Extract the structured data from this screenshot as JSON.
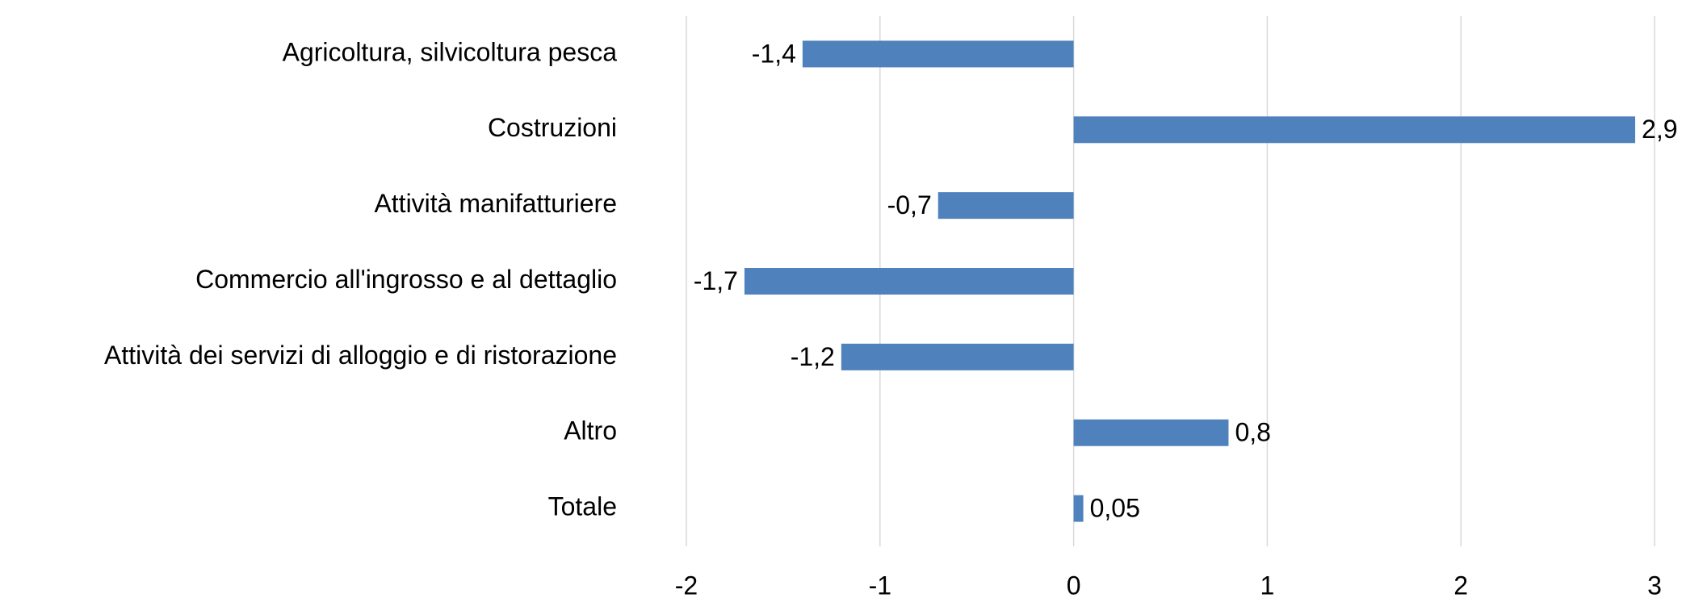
{
  "chart_data": {
    "type": "hbar",
    "categories": [
      "Agricoltura, silvicoltura pesca",
      "Costruzioni",
      "Attività manifatturiere",
      "Commercio all'ingrosso e al dettaglio",
      "Attività dei servizi di alloggio e di ristorazione",
      "Altro",
      "Totale"
    ],
    "values": [
      -1.4,
      2.9,
      -0.7,
      -1.7,
      -1.2,
      0.8,
      0.05
    ],
    "value_labels": [
      "-1,4",
      "2,9",
      "-0,7",
      "-1,7",
      "-1,2",
      "0,8",
      "0,05"
    ],
    "color": "#4f81bd",
    "xlim": [
      -2,
      3
    ],
    "xticks": [
      -2,
      -1,
      0,
      1,
      2,
      3
    ],
    "grid": true
  }
}
